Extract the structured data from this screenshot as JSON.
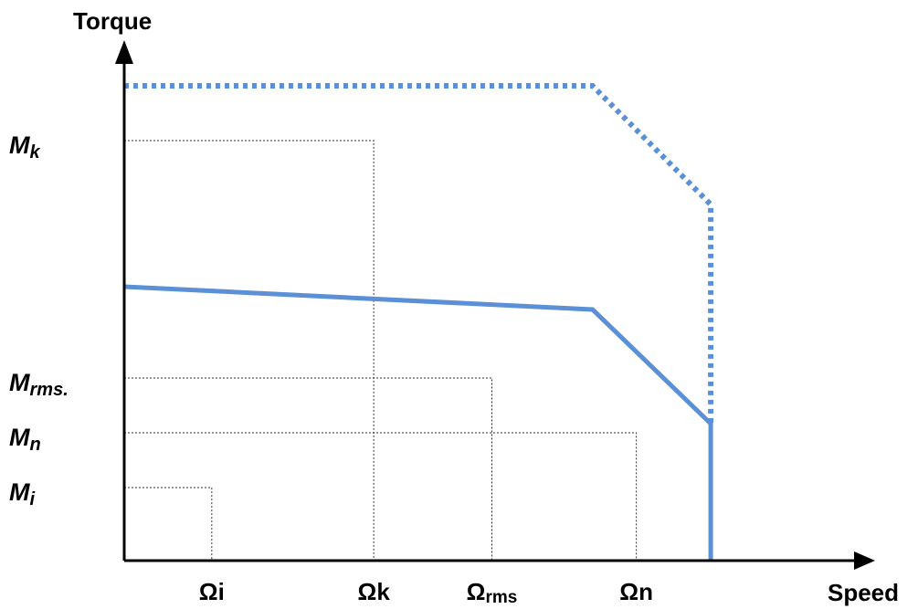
{
  "chart_data": {
    "type": "line",
    "ylabel": "Torque",
    "xlabel": "Speed",
    "x_ticks": [
      {
        "id": "omega-i",
        "base": "Ωi",
        "sub": "",
        "x": 100
      },
      {
        "id": "omega-k",
        "base": "Ωk",
        "sub": "",
        "x": 285
      },
      {
        "id": "omega-rms",
        "base": "Ω",
        "sub": "rms",
        "x": 420
      },
      {
        "id": "omega-n",
        "base": "Ωn",
        "sub": "",
        "x": 585
      }
    ],
    "y_ticks": [
      {
        "id": "m-k",
        "base": "M",
        "sub": "k",
        "y": 460
      },
      {
        "id": "m-rms",
        "base": "M",
        "sub": "rms.",
        "y": 200
      },
      {
        "id": "m-n",
        "base": "M",
        "sub": "n",
        "y": 140
      },
      {
        "id": "m-i",
        "base": "M",
        "sub": "i",
        "y": 80
      }
    ],
    "operating_points": [
      {
        "id": "point-i",
        "x": 100,
        "y": 80
      },
      {
        "id": "point-k",
        "x": 285,
        "y": 460
      },
      {
        "id": "point-rms",
        "x": 420,
        "y": 200
      },
      {
        "id": "point-n",
        "x": 585,
        "y": 140
      }
    ],
    "series": [
      {
        "id": "dotted-limit",
        "style": "dotted",
        "color": "#5b8fd6",
        "x": [
          0,
          535,
          670,
          670
        ],
        "y": [
          520,
          520,
          390,
          150
        ]
      },
      {
        "id": "solid-limit",
        "style": "solid",
        "color": "#5b8fd6",
        "x": [
          0,
          535,
          670,
          670
        ],
        "y": [
          300,
          275,
          150,
          0
        ]
      }
    ],
    "xlim": [
      0,
      840
    ],
    "ylim": [
      0,
      600
    ]
  }
}
